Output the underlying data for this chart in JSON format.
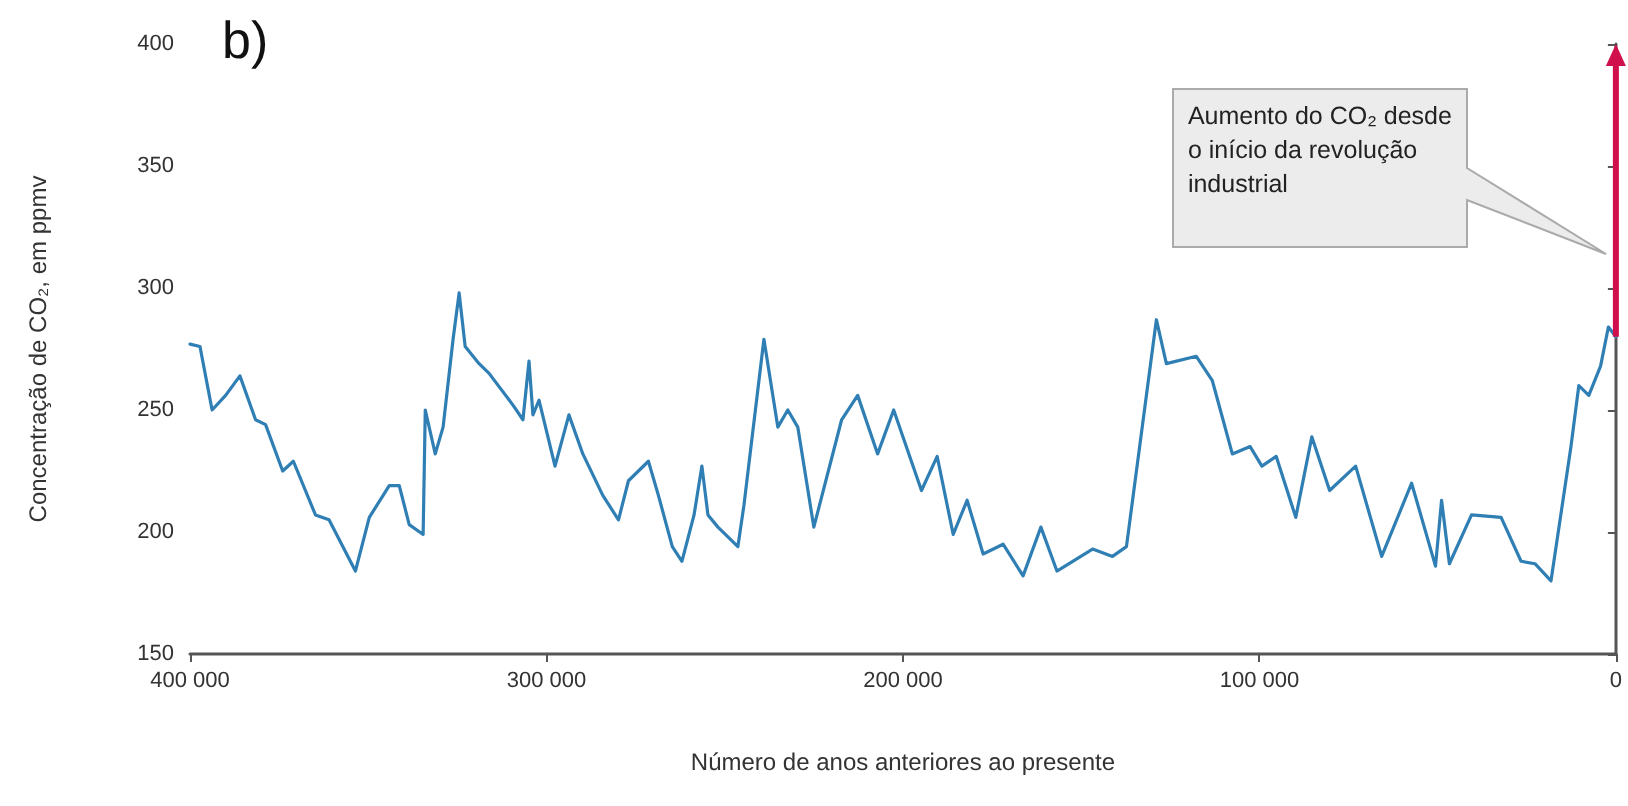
{
  "chart_data": {
    "type": "line",
    "title": "b)",
    "xlabel": "Número de anos anteriores ao presente",
    "ylabel": "Concentração de CO₂, em ppmv",
    "x": [
      400000,
      397200,
      393800,
      390000,
      386000,
      381600,
      378800,
      374000,
      371000,
      364800,
      361000,
      353600,
      349700,
      344100,
      341300,
      338500,
      334600,
      334000,
      331200,
      329000,
      326200,
      324500,
      322800,
      318900,
      316100,
      309400,
      306600,
      304900,
      303800,
      302100,
      297600,
      293700,
      289800,
      284200,
      279800,
      277000,
      271400,
      268600,
      264700,
      262000,
      258600,
      256400,
      254700,
      251900,
      246300,
      244600,
      239000,
      235100,
      232300,
      229500,
      225000,
      217200,
      212700,
      207100,
      202600,
      194800,
      190400,
      185900,
      182000,
      177500,
      171900,
      166300,
      161300,
      156800,
      146800,
      141200,
      137300,
      128900,
      126100,
      117700,
      113200,
      107600,
      102600,
      99300,
      95300,
      89800,
      85300,
      80300,
      73000,
      65700,
      57300,
      50600,
      48900,
      46700,
      40500,
      32200,
      26600,
      22700,
      18200,
      12600,
      10400,
      7600,
      4300,
      2100,
      0
    ],
    "series": [
      {
        "color": "#2f7fb5",
        "values": [
          277,
          276,
          250,
          256,
          264,
          246,
          244,
          225,
          229,
          207,
          205,
          184,
          206,
          219,
          219,
          203,
          199,
          250,
          232,
          243,
          279,
          298,
          276,
          269,
          265,
          252,
          246,
          270,
          248,
          254,
          227,
          248,
          232,
          215,
          205,
          221,
          229,
          215,
          194,
          188,
          207,
          227,
          207,
          202,
          194,
          211,
          279,
          243,
          250,
          243,
          202,
          246,
          256,
          232,
          250,
          217,
          231,
          199,
          213,
          191,
          195,
          182,
          202,
          184,
          193,
          190,
          194,
          287,
          269,
          272,
          262,
          232,
          235,
          227,
          231,
          206,
          239,
          217,
          227,
          190,
          220,
          186,
          213,
          187,
          207,
          206,
          188,
          187,
          180,
          235,
          260,
          256,
          268,
          284,
          280
        ]
      }
    ],
    "xlim": [
      400000,
      0
    ],
    "xticks": [
      {
        "value": 400000,
        "label": "400 000"
      },
      {
        "value": 300000,
        "label": "300 000"
      },
      {
        "value": 200000,
        "label": "200 000"
      },
      {
        "value": 100000,
        "label": "100 000"
      },
      0
    ],
    "ylim": [
      150,
      400
    ],
    "yticks": [
      150,
      200,
      250,
      300,
      350,
      400
    ],
    "grid": false,
    "marker": "none",
    "line_style": "solid",
    "annotations": [
      "Aumento do CO₂ desde o início da revolução industrial"
    ]
  }
}
